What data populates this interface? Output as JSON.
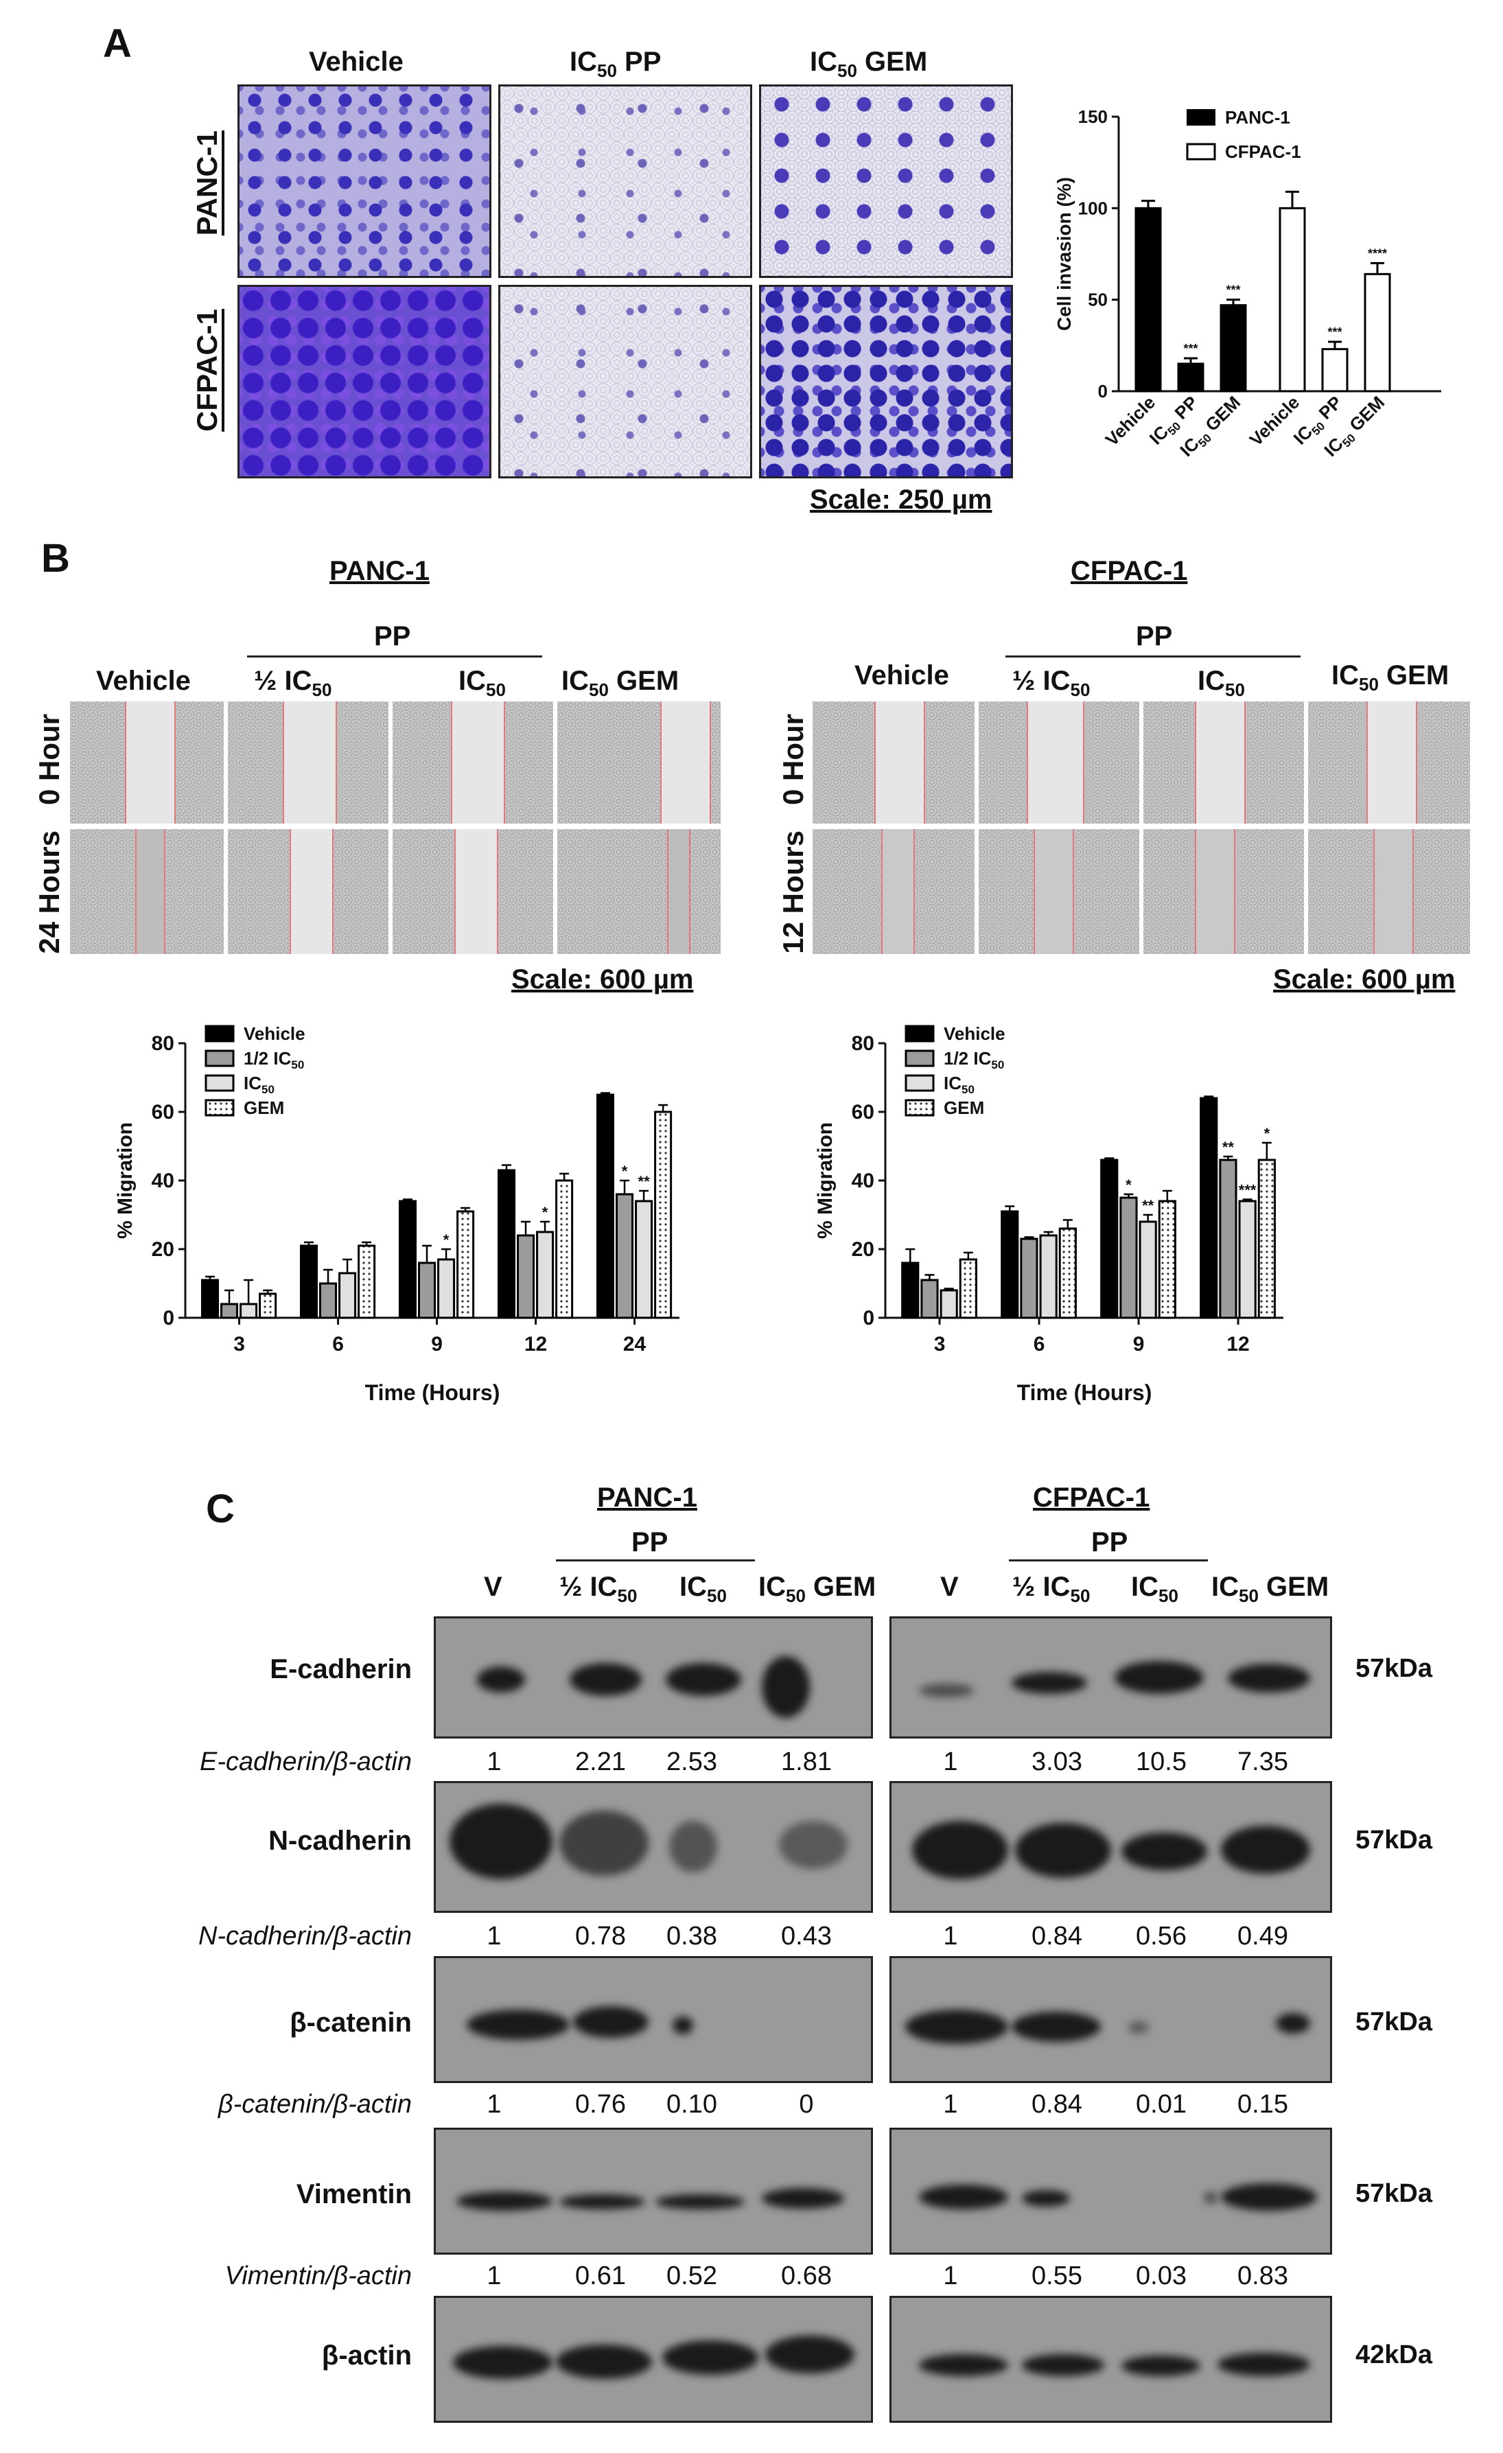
{
  "panelA": {
    "letter": "A",
    "col_labels": [
      "Vehicle",
      "IC",
      "PP",
      "IC",
      "GEM"
    ],
    "sub50": "50",
    "rows": [
      "PANC-1",
      "CFPAC-1"
    ],
    "scale": "Scale: 250 µm",
    "chart": {
      "ylabel": "Cell invasion (%)",
      "yticks": [
        "0",
        "50",
        "100",
        "150"
      ],
      "legend": [
        "PANC-1",
        "CFPAC-1"
      ],
      "xlabels": [
        "Vehicle",
        "IC",
        "PP",
        "IC",
        "GEM"
      ]
    }
  },
  "panelB": {
    "letter": "B",
    "left_title": "PANC-1",
    "right_title": "CFPAC-1",
    "pp": "PP",
    "half": "½ IC",
    "ic": "IC",
    "sub50": "50",
    "vehicle": "Vehicle",
    "gem": "GEM",
    "row0": "0 Hour",
    "row24": "24 Hours",
    "row12": "12 Hours",
    "scale": "Scale: 600 µm",
    "chart_common": {
      "ylabel": "% Migration",
      "xlabel": "Time (Hours)",
      "yticks": [
        "0",
        "20",
        "40",
        "60",
        "80"
      ],
      "legend": [
        "Vehicle",
        "1/2 IC",
        "IC",
        "GEM"
      ]
    }
  },
  "panelC": {
    "letter": "C",
    "left_title": "PANC-1",
    "right_title": "CFPAC-1",
    "pp": "PP",
    "lanes": [
      "V",
      "½ IC",
      "IC",
      "IC",
      "GEM"
    ],
    "sub50": "50",
    "proteins": [
      "E-cadherin",
      "N-cadherin",
      "β-catenin",
      "Vimentin",
      "β-actin"
    ],
    "ratio_labels": [
      "E-cadherin/β-actin",
      "N-cadherin/β-actin",
      "β-catenin/β-actin",
      "Vimentin/β-actin"
    ],
    "kda": [
      "57kDa",
      "57kDa",
      "57kDa",
      "57kDa",
      "42kDa"
    ],
    "ratios_left": [
      [
        "1",
        "2.21",
        "2.53",
        "1.81"
      ],
      [
        "1",
        "0.78",
        "0.38",
        "0.43"
      ],
      [
        "1",
        "0.76",
        "0.10",
        "0"
      ],
      [
        "1",
        "0.61",
        "0.52",
        "0.68"
      ]
    ],
    "ratios_right": [
      [
        "1",
        "3.03",
        "10.5",
        "7.35"
      ],
      [
        "1",
        "0.84",
        "0.56",
        "0.49"
      ],
      [
        "1",
        "0.84",
        "0.01",
        "0.15"
      ],
      [
        "1",
        "0.55",
        "0.03",
        "0.83"
      ]
    ]
  },
  "chart_data": [
    {
      "type": "bar",
      "ylabel": "Cell invasion (%)",
      "ylim": [
        0,
        150
      ],
      "categories": [
        "Vehicle",
        "IC50 PP",
        "IC50 GEM"
      ],
      "series": [
        {
          "name": "PANC-1",
          "values": [
            100,
            15,
            47
          ],
          "errors": [
            4,
            3,
            3
          ],
          "sig": [
            "",
            "***",
            "***"
          ],
          "color": "#000000"
        },
        {
          "name": "CFPAC-1",
          "values": [
            100,
            23,
            64
          ],
          "errors": [
            9,
            4,
            6
          ],
          "sig": [
            "",
            "***",
            "****"
          ],
          "color": "#ffffff"
        }
      ]
    },
    {
      "type": "bar",
      "ylabel": "% Migration",
      "xlabel": "Time (Hours)",
      "ylim": [
        0,
        80
      ],
      "categories": [
        "3",
        "6",
        "9",
        "12",
        "24"
      ],
      "series": [
        {
          "name": "Vehicle",
          "values": [
            11,
            21,
            34,
            43,
            65
          ],
          "errors": [
            1,
            1,
            0.5,
            1.5,
            0.5
          ],
          "sig": [
            "",
            "",
            "",
            "",
            ""
          ]
        },
        {
          "name": "1/2 IC50",
          "values": [
            4,
            10,
            16,
            24,
            36
          ],
          "errors": [
            4,
            4,
            5,
            4,
            4
          ],
          "sig": [
            "",
            "",
            "",
            "",
            "*"
          ]
        },
        {
          "name": "IC50",
          "values": [
            4,
            13,
            17,
            25,
            34
          ],
          "errors": [
            7,
            4,
            3,
            3,
            3
          ],
          "sig": [
            "",
            "",
            "*",
            "*",
            "**"
          ]
        },
        {
          "name": "GEM",
          "values": [
            7,
            21,
            31,
            40,
            60
          ],
          "errors": [
            1,
            1,
            1,
            2,
            2
          ],
          "sig": [
            "",
            "",
            "",
            "",
            ""
          ]
        }
      ]
    },
    {
      "type": "bar",
      "ylabel": "% Migration",
      "xlabel": "Time (Hours)",
      "ylim": [
        0,
        80
      ],
      "categories": [
        "3",
        "6",
        "9",
        "12"
      ],
      "series": [
        {
          "name": "Vehicle",
          "values": [
            16,
            31,
            46,
            64
          ],
          "errors": [
            4,
            1.5,
            0.5,
            0.5
          ],
          "sig": [
            "",
            "",
            "",
            ""
          ]
        },
        {
          "name": "1/2 IC50",
          "values": [
            11,
            23,
            35,
            46
          ],
          "errors": [
            1.5,
            0.5,
            1,
            1
          ],
          "sig": [
            "",
            "",
            "*",
            "**"
          ]
        },
        {
          "name": "IC50",
          "values": [
            8,
            24,
            28,
            34
          ],
          "errors": [
            0.5,
            1,
            2,
            0.5
          ],
          "sig": [
            "",
            "",
            "**",
            "***"
          ]
        },
        {
          "name": "GEM",
          "values": [
            17,
            26,
            34,
            46
          ],
          "errors": [
            2,
            2.5,
            3,
            5
          ],
          "sig": [
            "",
            "",
            "",
            "*"
          ]
        }
      ]
    }
  ]
}
